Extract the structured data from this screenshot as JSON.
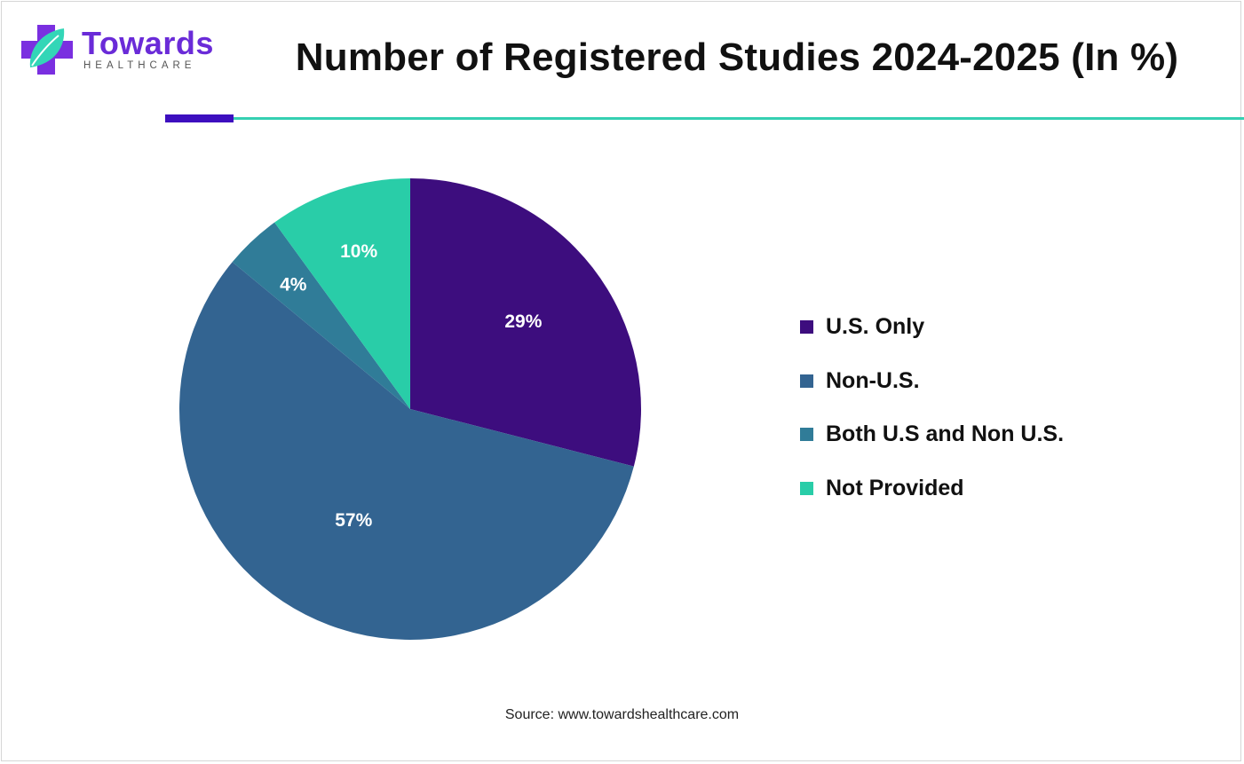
{
  "brand": {
    "name": "Towards",
    "subtitle": "HEALTHCARE"
  },
  "colors": {
    "brand_purple": "#6a2bd8",
    "accent_bar": "#3d0fbf",
    "accent_line": "#35d0b2"
  },
  "chart_data": {
    "type": "pie",
    "title": "Number of Registered Studies 2024-2025 (In %)",
    "categories": [
      "U.S. Only",
      "Non-U.S.",
      "Both U.S and Non U.S.",
      "Not Provided"
    ],
    "values": [
      29,
      57,
      4,
      10
    ],
    "labels": [
      "29%",
      "57%",
      "4%",
      "10%"
    ],
    "colors": [
      "#3d0d7e",
      "#336491",
      "#307c98",
      "#29cda8"
    ],
    "legend_position": "right",
    "start": "top, clockwise"
  },
  "source": "Source: www.towardshealthcare.com"
}
